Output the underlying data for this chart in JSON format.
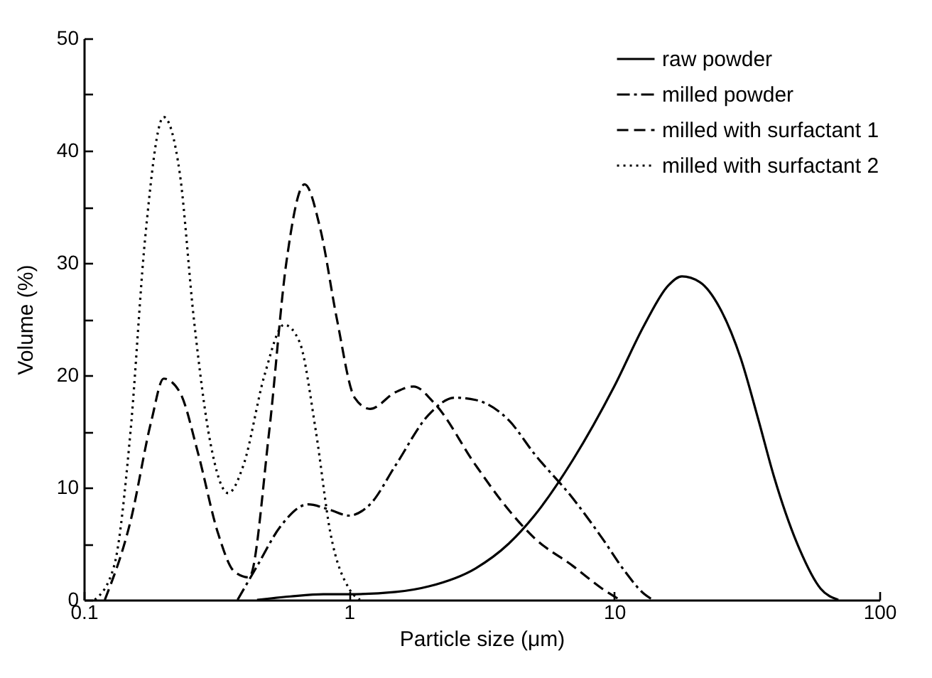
{
  "chart_data": {
    "type": "line",
    "xlabel": "Particle size (μm)",
    "ylabel": "Volume (%)",
    "xlim": [
      0.1,
      100
    ],
    "xticks": [
      0.1,
      1,
      10,
      100
    ],
    "log": "x",
    "ylim": [
      0,
      50
    ],
    "yticks": [
      0,
      {
        "value": 5,
        "label": null
      },
      10,
      {
        "value": 15,
        "label": null
      },
      20,
      {
        "value": 25,
        "label": null
      },
      30,
      {
        "value": 35,
        "label": null
      },
      40,
      {
        "value": 45,
        "label": null
      },
      50
    ],
    "grid": false,
    "legend": "top right",
    "marker": "none",
    "series": [
      {
        "name": "raw powder",
        "color": "#000000",
        "line_style": "solid",
        "x": [
          0.45,
          0.6,
          0.8,
          1,
          1.5,
          2,
          3,
          4,
          5,
          7,
          10,
          13,
          16,
          18,
          21,
          25,
          30,
          35,
          40,
          50,
          60,
          70
        ],
        "values": [
          0,
          0.3,
          0.5,
          0.5,
          0.7,
          1.2,
          2.8,
          5,
          7.5,
          12.5,
          19,
          24.5,
          28,
          28.8,
          28.3,
          26,
          21.5,
          16,
          11,
          4.5,
          1,
          0
        ]
      },
      {
        "name": "milled powder",
        "color": "#000000",
        "line_style": "dashdot",
        "x": [
          0.38,
          0.45,
          0.55,
          0.7,
          0.85,
          1,
          1.2,
          1.5,
          2,
          2.5,
          3,
          4,
          5,
          7,
          9,
          11,
          13,
          14
        ],
        "values": [
          0,
          3,
          6.5,
          8.5,
          8,
          7.5,
          8.5,
          12,
          16.5,
          18,
          17.8,
          16,
          13,
          9,
          5.5,
          2.5,
          0.5,
          0
        ]
      },
      {
        "name": "milled with surfactant 1",
        "color": "#000000",
        "line_style": "dashed",
        "x": [
          0.12,
          0.15,
          0.18,
          0.2,
          0.23,
          0.27,
          0.32,
          0.37,
          0.42,
          0.5,
          0.58,
          0.68,
          0.78,
          0.9,
          1.05,
          1.2,
          1.5,
          1.75,
          2.1,
          3,
          4,
          5,
          7,
          9,
          10.5
        ],
        "values": [
          0,
          7,
          16,
          19.7,
          18.5,
          13,
          6,
          2.5,
          2,
          15,
          30,
          37,
          33,
          25,
          18,
          17,
          18.5,
          19,
          17.5,
          12,
          8,
          5.5,
          3,
          1,
          0
        ]
      },
      {
        "name": "milled with surfactant 2",
        "color": "#000000",
        "line_style": "dotted",
        "x": [
          0.11,
          0.13,
          0.15,
          0.17,
          0.2,
          0.23,
          0.26,
          0.3,
          0.35,
          0.4,
          0.48,
          0.57,
          0.65,
          0.75,
          0.85,
          1,
          1.1
        ],
        "values": [
          0,
          3,
          15,
          32,
          43,
          38,
          25,
          14,
          9.5,
          12,
          20,
          24.5,
          23,
          15,
          6,
          1,
          0
        ]
      }
    ]
  }
}
